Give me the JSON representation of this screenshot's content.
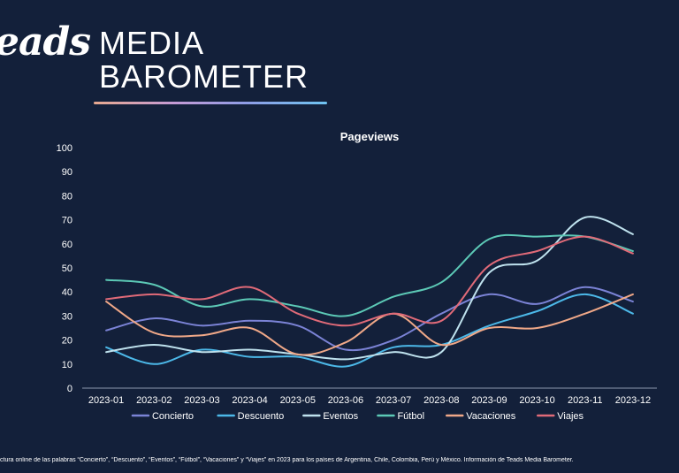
{
  "brand": {
    "logo_text": "eads",
    "title_line1": "MEDIA",
    "title_line2": "BAROMETER"
  },
  "footnote": "ctura online de las palabras “Concierto”, “Descuento”, “Eventos”, “Fútbol”, “Vacaciones” y “Viajes” en 2023 para los países de Argentina, Chile, Colombia, Perú y México. Información de Teads Media Barometer.",
  "chart_data": {
    "type": "line",
    "title": "Pageviews",
    "xlabel": "",
    "ylabel": "",
    "categories": [
      "2023-01",
      "2023-02",
      "2023-03",
      "2023-04",
      "2023-05",
      "2023-06",
      "2023-07",
      "2023-08",
      "2023-09",
      "2023-10",
      "2023-11",
      "2023-12"
    ],
    "ylim": [
      0,
      100
    ],
    "yticks": [
      0,
      10,
      20,
      30,
      40,
      50,
      60,
      70,
      80,
      90,
      100
    ],
    "grid": false,
    "legend": "bottom",
    "series": [
      {
        "name": "Concierto",
        "color": "#7b83d6",
        "values": [
          24,
          29,
          26,
          28,
          26,
          16,
          20,
          31,
          39,
          35,
          42,
          36
        ]
      },
      {
        "name": "Descuento",
        "color": "#4cb8e8",
        "values": [
          17,
          10,
          16,
          13,
          13,
          9,
          17,
          18,
          26,
          32,
          39,
          31
        ]
      },
      {
        "name": "Eventos",
        "color": "#bfe2ee",
        "values": [
          15,
          18,
          15,
          16,
          14,
          12,
          15,
          15,
          48,
          53,
          71,
          64
        ]
      },
      {
        "name": "Fútbol",
        "color": "#5cc9b6",
        "values": [
          45,
          43,
          34,
          37,
          34,
          30,
          38,
          44,
          62,
          63,
          63,
          57
        ]
      },
      {
        "name": "Vacaciones",
        "color": "#f0a888",
        "values": [
          36,
          23,
          22,
          25,
          14,
          19,
          31,
          18,
          25,
          25,
          31,
          39
        ]
      },
      {
        "name": "Viajes",
        "color": "#e06a78",
        "values": [
          37,
          39,
          37,
          42,
          31,
          26,
          31,
          28,
          51,
          57,
          63,
          56
        ]
      }
    ]
  }
}
